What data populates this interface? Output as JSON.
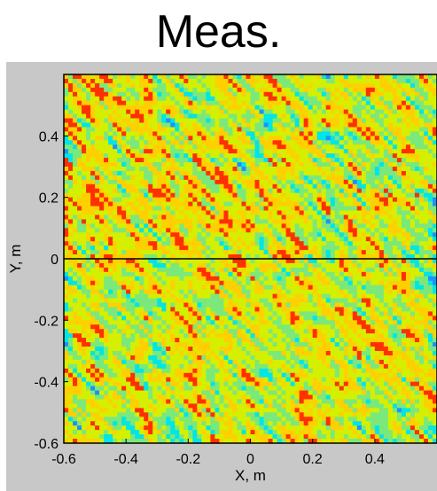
{
  "chart_data": {
    "type": "heatmap",
    "title": "Meas.",
    "xlabel": "X, m",
    "ylabel": "Y, m",
    "xlim": [
      -0.6,
      0.6
    ],
    "ylim": [
      -0.6,
      0.6
    ],
    "x_ticks": [
      {
        "value": -0.6,
        "label": "-0.6"
      },
      {
        "value": -0.4,
        "label": "-0.4"
      },
      {
        "value": -0.2,
        "label": "-0.2"
      },
      {
        "value": 0,
        "label": "0"
      },
      {
        "value": 0.2,
        "label": "0.2"
      },
      {
        "value": 0.4,
        "label": "0.4"
      }
    ],
    "y_ticks": [
      {
        "value": -0.6,
        "label": "-0.6"
      },
      {
        "value": -0.4,
        "label": "-0.4"
      },
      {
        "value": -0.2,
        "label": "-0.2"
      },
      {
        "value": 0,
        "label": "0"
      },
      {
        "value": 0.2,
        "label": "0.2"
      },
      {
        "value": 0.4,
        "label": "0.4"
      }
    ],
    "horizontal_line_y": 0,
    "colormap": [
      "#1e90ff",
      "#00e5e5",
      "#7be87b",
      "#d4f000",
      "#ffd000",
      "#ff3000"
    ],
    "grid": false
  }
}
